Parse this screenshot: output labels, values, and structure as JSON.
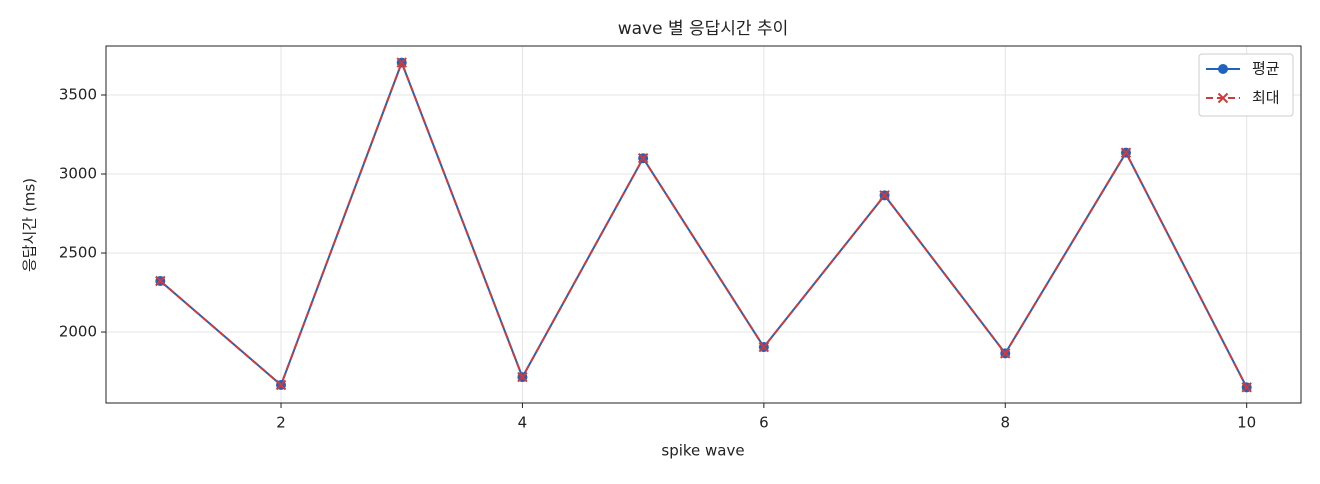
{
  "chart_data": {
    "type": "line",
    "title": "wave 별 응답시간 추이",
    "xlabel": "spike wave",
    "ylabel": "응답시간 (ms)",
    "x": [
      1,
      2,
      3,
      4,
      5,
      6,
      7,
      8,
      9,
      10
    ],
    "series": [
      {
        "name": "평균",
        "color": "#1f63bf",
        "linestyle": "solid",
        "marker": "circle",
        "values": [
          2323,
          1665,
          3705,
          1715,
          3100,
          1905,
          2865,
          1865,
          3135,
          1650
        ]
      },
      {
        "name": "최대",
        "color": "#d13a3a",
        "linestyle": "dashed",
        "marker": "x",
        "values": [
          2323,
          1665,
          3705,
          1715,
          3100,
          1905,
          2865,
          1865,
          3135,
          1650
        ]
      }
    ],
    "xlim": [
      0.55,
      10.45
    ],
    "xticks": [
      2,
      4,
      6,
      8,
      10
    ],
    "ylim": [
      1551,
      3810
    ],
    "yticks": [
      2000,
      2500,
      3000,
      3500
    ],
    "grid": true,
    "legend": "upper right"
  }
}
